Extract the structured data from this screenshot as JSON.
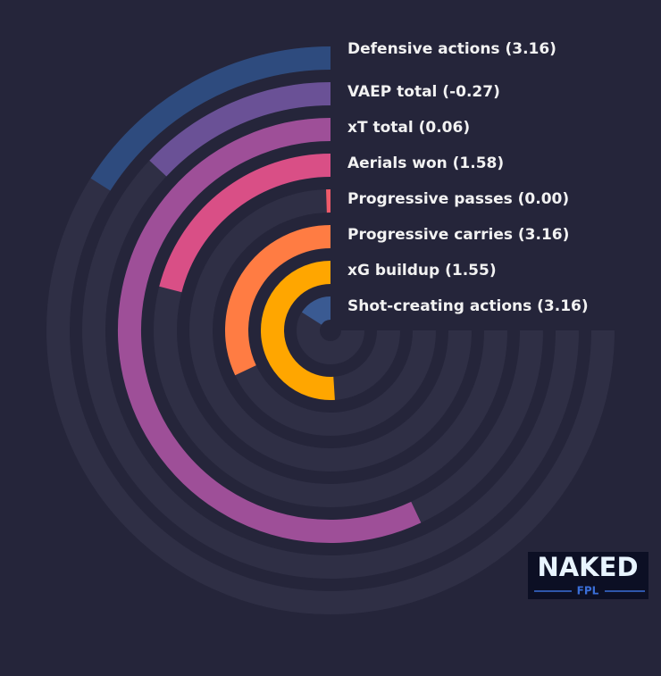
{
  "chart_data": {
    "type": "radial_bar",
    "categories": [
      "Defensive actions (3.16)",
      "VAEP total (-0.27)",
      "xT total (0.06)",
      "Aerials won (1.58)",
      "Progressive passes (0.00)",
      "Progressive carries (3.16)",
      "xG buildup (1.55)",
      "Shot-creating actions (3.16)"
    ],
    "values": [
      16,
      13,
      57,
      21,
      0.5,
      32,
      51,
      16
    ],
    "colors": [
      "#2e4b7e",
      "#6a5196",
      "#9e4f98",
      "#d94f86",
      "#f05b6a",
      "#ff7c43",
      "#ffa600",
      "#3a5a92"
    ],
    "ylim": [
      0,
      100
    ],
    "track_color": "#2f2f45"
  },
  "logo": {
    "top": "NAKED",
    "bottom": "FPL"
  }
}
